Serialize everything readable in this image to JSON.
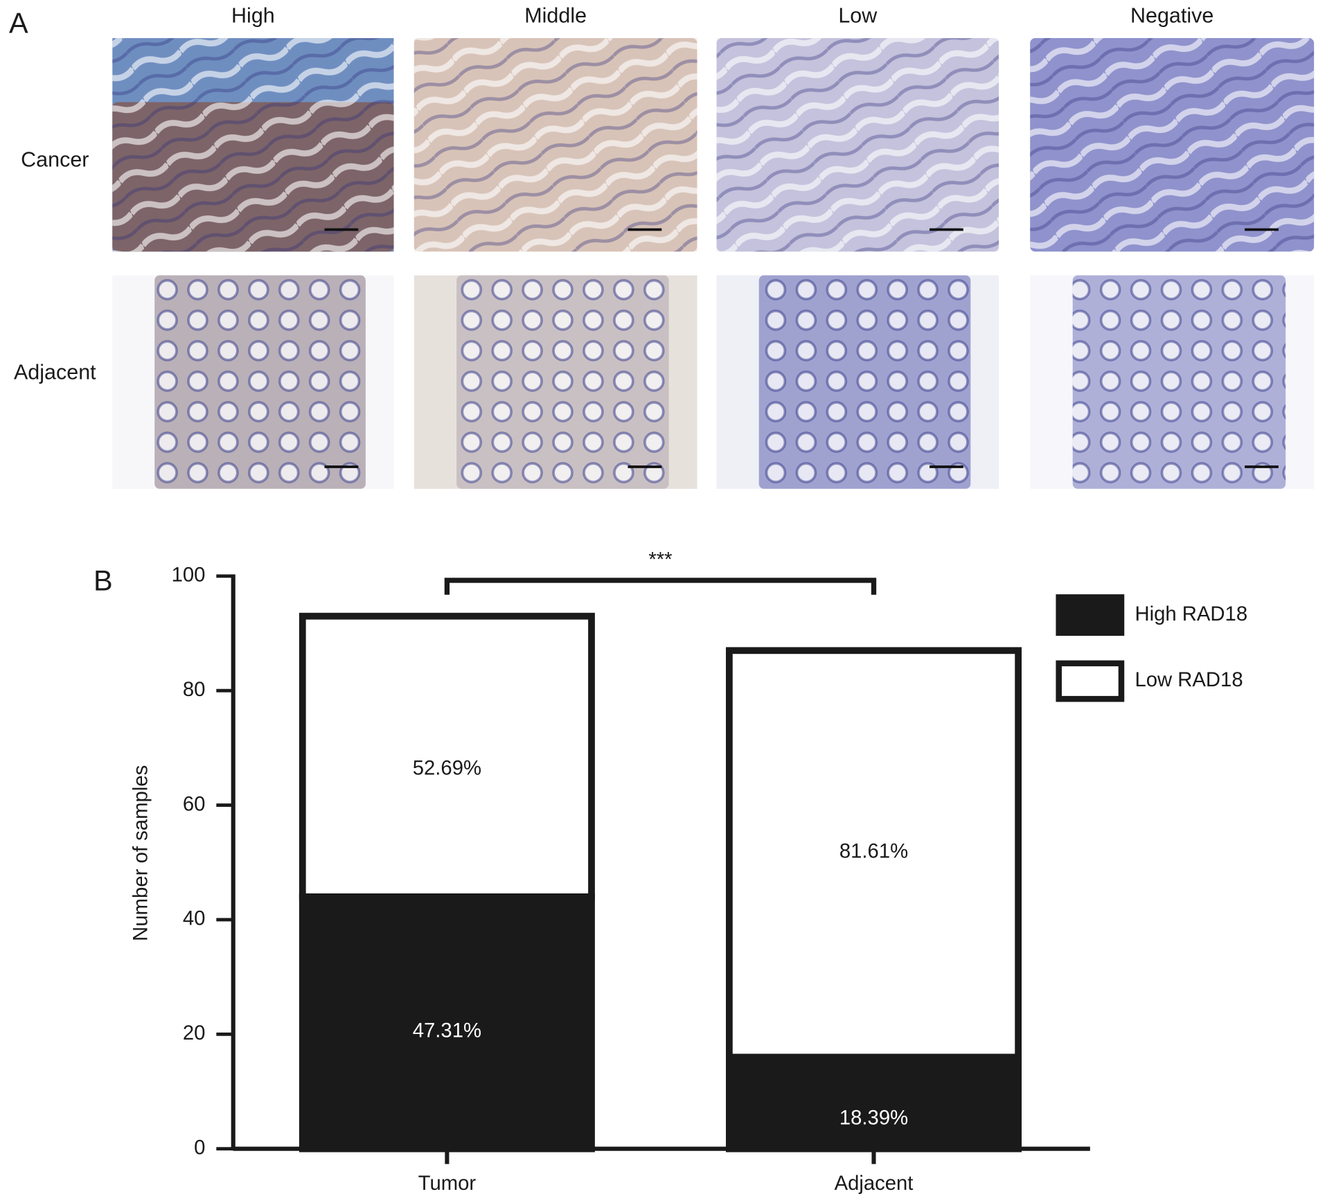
{
  "panel_a": {
    "label": "A",
    "columns": [
      "High",
      "Middle",
      "Low",
      "Negative"
    ],
    "rows": [
      "Cancer",
      "Adjacent"
    ]
  },
  "chart_data": {
    "type": "stacked_bar",
    "panel_label": "B",
    "categories": [
      "Tumor",
      "Adjacent"
    ],
    "series": [
      {
        "name": "High RAD18",
        "color": "#1a1a1a",
        "values": [
          44,
          16
        ],
        "value_labels": [
          "47.31%",
          "18.39%"
        ]
      },
      {
        "name": "Low RAD18",
        "color": "#ffffff",
        "values": [
          49,
          71
        ],
        "value_labels": [
          "52.69%",
          "81.61%"
        ]
      }
    ],
    "y_label": "Number of samples",
    "ylim": [
      0,
      100
    ],
    "yticks": [
      0,
      20,
      40,
      60,
      80,
      100
    ],
    "significance": "***",
    "legend": "upper right"
  }
}
